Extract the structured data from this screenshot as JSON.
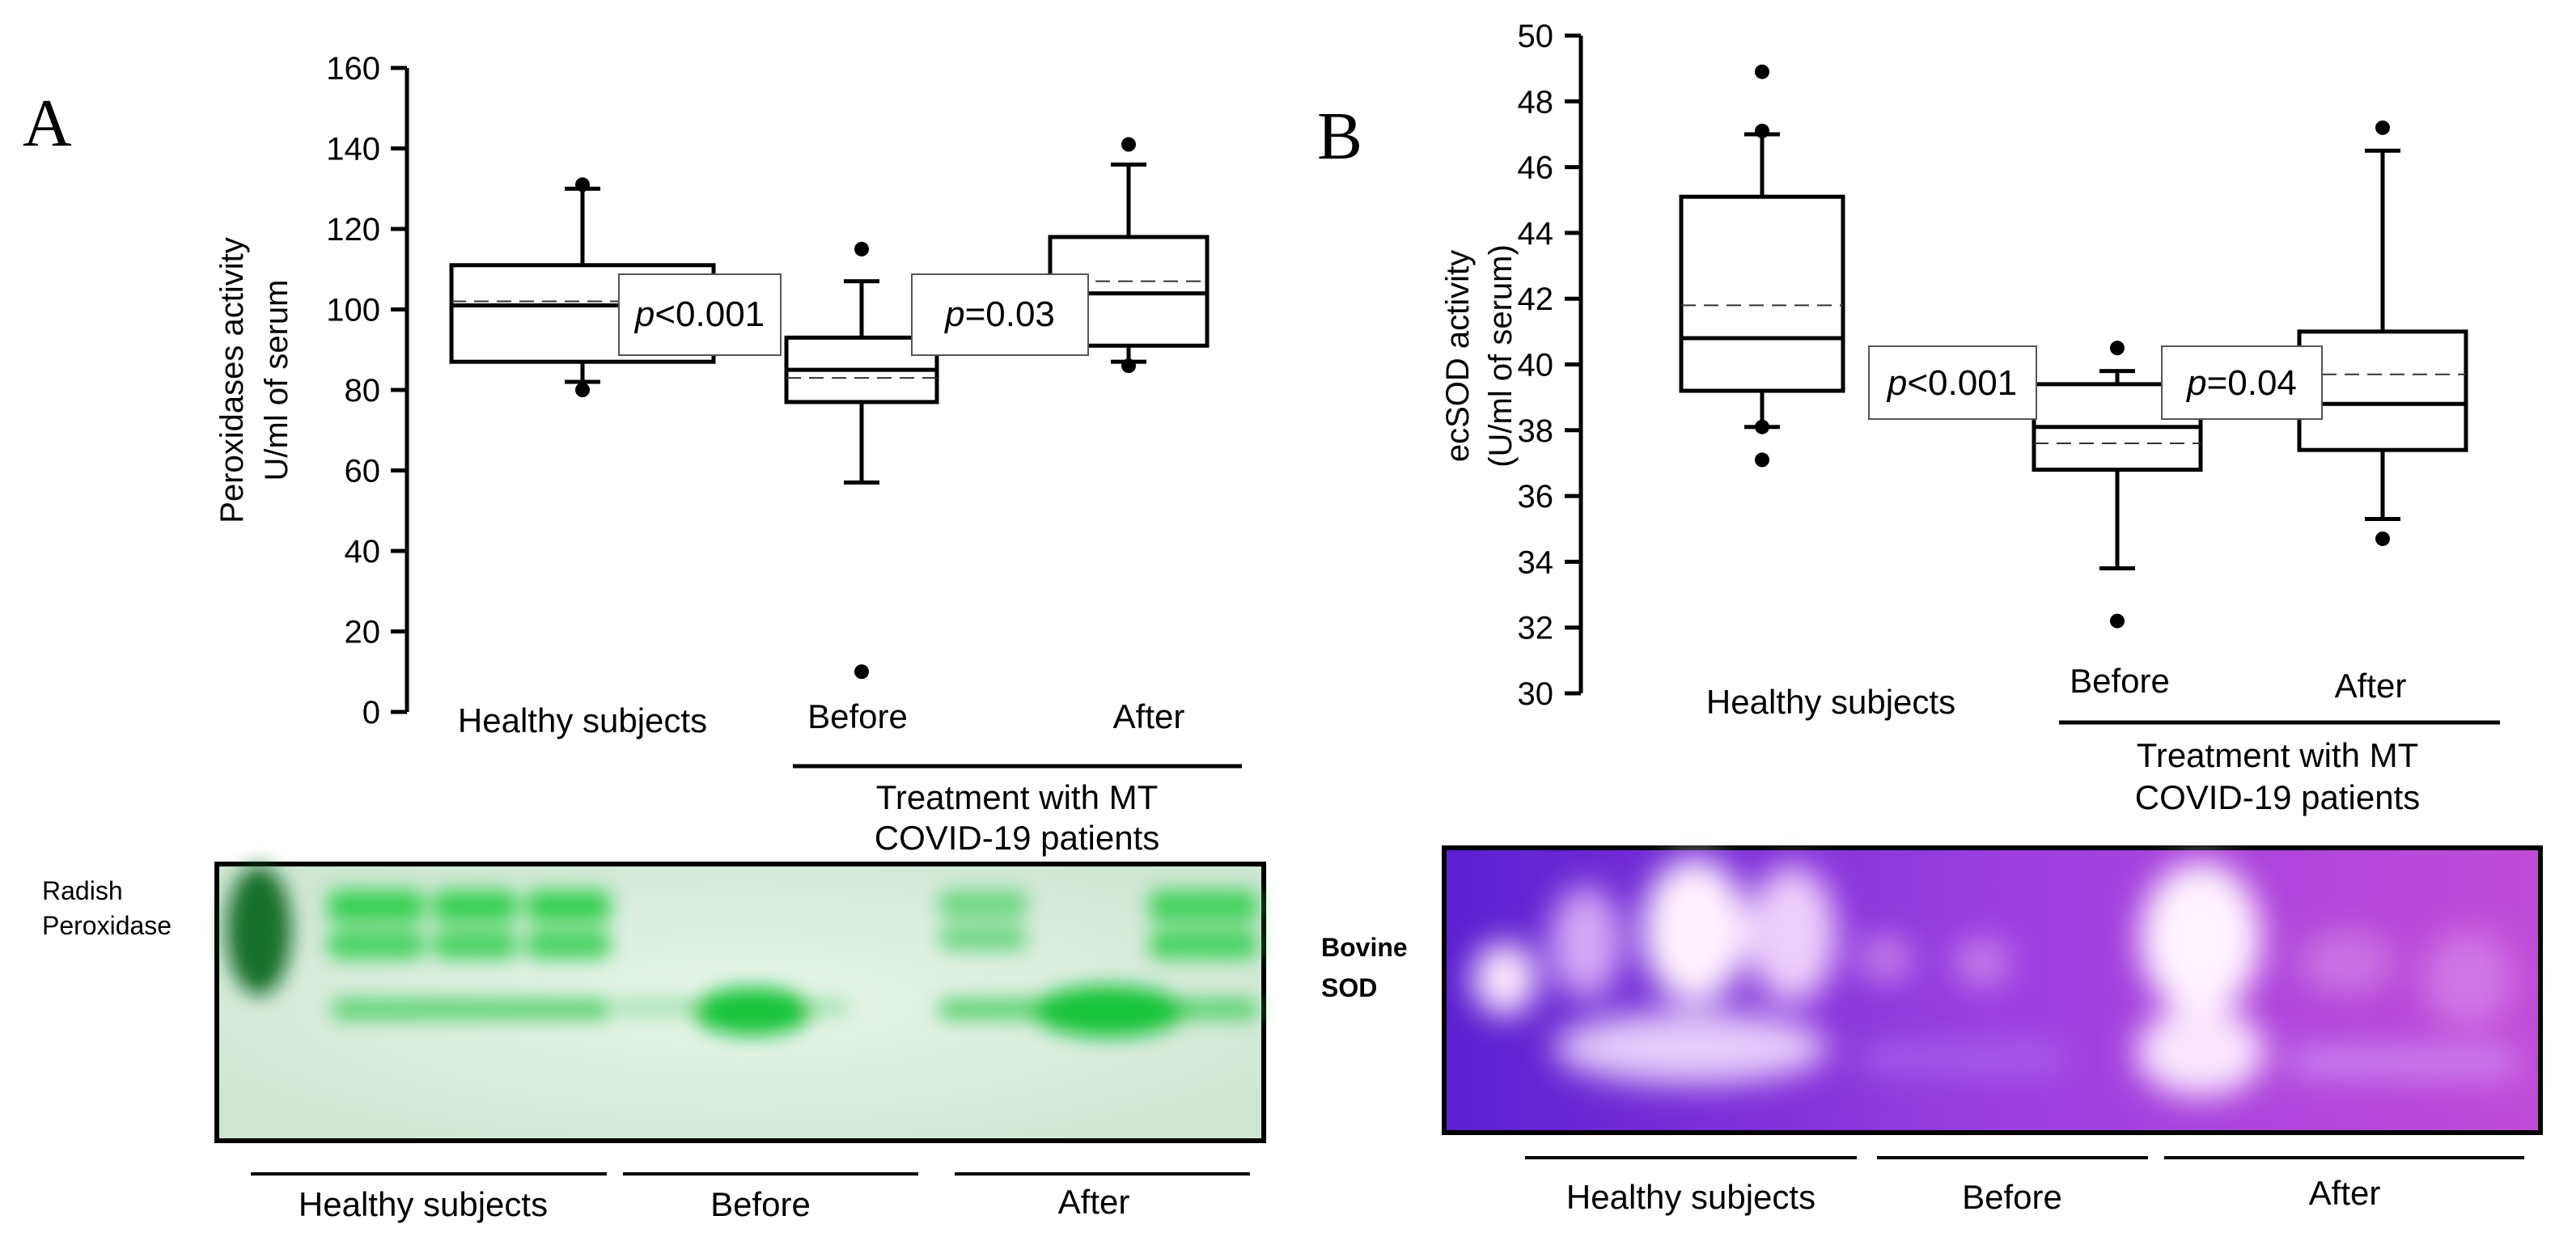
{
  "figure": {
    "panels": [
      {
        "letter": "A",
        "y_title_line1": "Peroxidases activity",
        "y_title_line2": "U/ml of serum",
        "healthy_label": "Healthy subjects",
        "before_label": "Before",
        "after_label": "After",
        "group_label_line1": "Treatment with MT",
        "group_label_line2": "COVID-19 patients",
        "p_values": [
          "<0.001",
          "=0.03"
        ],
        "p_prefix": "p",
        "gel": {
          "standard_label_line1": "Radish",
          "standard_label_line2": "Peroxidase",
          "lane_groups": [
            "Healthy subjects",
            "Before",
            "After"
          ],
          "background_color": "#d8ecdc",
          "band_color": "#22c43a"
        }
      },
      {
        "letter": "B",
        "y_title_line1": "ecSOD activity",
        "y_title_line2": "(U/ml of serum)",
        "healthy_label": "Healthy subjects",
        "before_label": "Before",
        "after_label": "After",
        "group_label_line1": "Treatment with MT",
        "group_label_line2": "COVID-19 patients",
        "p_values": [
          "<0.001",
          "=0.04"
        ],
        "p_prefix": "p",
        "gel": {
          "standard_label_line1": "Bovine",
          "standard_label_line2": "SOD",
          "lane_groups": [
            "Healthy subjects",
            "Before",
            "After"
          ],
          "background_color": "#7a2fd6",
          "band_color": "#f2e6ff"
        }
      }
    ]
  },
  "chart_data": [
    {
      "type": "box",
      "ylim": [
        0,
        160
      ],
      "yticks": [
        0,
        20,
        40,
        60,
        80,
        100,
        120,
        140,
        160
      ],
      "categories": [
        "Healthy subjects",
        "Before",
        "After"
      ],
      "boxes": [
        {
          "category": "Healthy subjects",
          "whisker_low": 82,
          "q1": 87,
          "median": 101,
          "mean": 102,
          "q3": 111,
          "whisker_high": 130,
          "outliers": [
            80,
            131
          ]
        },
        {
          "category": "Before",
          "whisker_low": 57,
          "q1": 77,
          "median": 85,
          "mean": 83,
          "q3": 93,
          "whisker_high": 107,
          "outliers": [
            10,
            115
          ]
        },
        {
          "category": "After",
          "whisker_low": 87,
          "q1": 91,
          "median": 104,
          "mean": 107,
          "q3": 118,
          "whisker_high": 136,
          "outliers": [
            86,
            141
          ]
        }
      ]
    },
    {
      "type": "box",
      "ylim": [
        30,
        50
      ],
      "yticks": [
        30,
        32,
        34,
        36,
        38,
        40,
        42,
        44,
        46,
        48,
        50
      ],
      "categories": [
        "Healthy subjects",
        "Before",
        "After"
      ],
      "boxes": [
        {
          "category": "Healthy subjects",
          "whisker_low": 38.1,
          "q1": 39.2,
          "median": 40.8,
          "mean": 41.8,
          "q3": 45.1,
          "whisker_high": 47.0,
          "outliers": [
            37.1,
            38.1,
            47.1,
            48.9
          ]
        },
        {
          "category": "Before",
          "whisker_low": 33.8,
          "q1": 36.8,
          "median": 38.1,
          "mean": 37.6,
          "q3": 39.4,
          "whisker_high": 39.8,
          "outliers": [
            32.2,
            40.5
          ]
        },
        {
          "category": "After",
          "whisker_low": 35.3,
          "q1": 37.4,
          "median": 38.8,
          "mean": 39.7,
          "q3": 41.0,
          "whisker_high": 46.5,
          "outliers": [
            34.7,
            47.2
          ]
        }
      ]
    }
  ]
}
